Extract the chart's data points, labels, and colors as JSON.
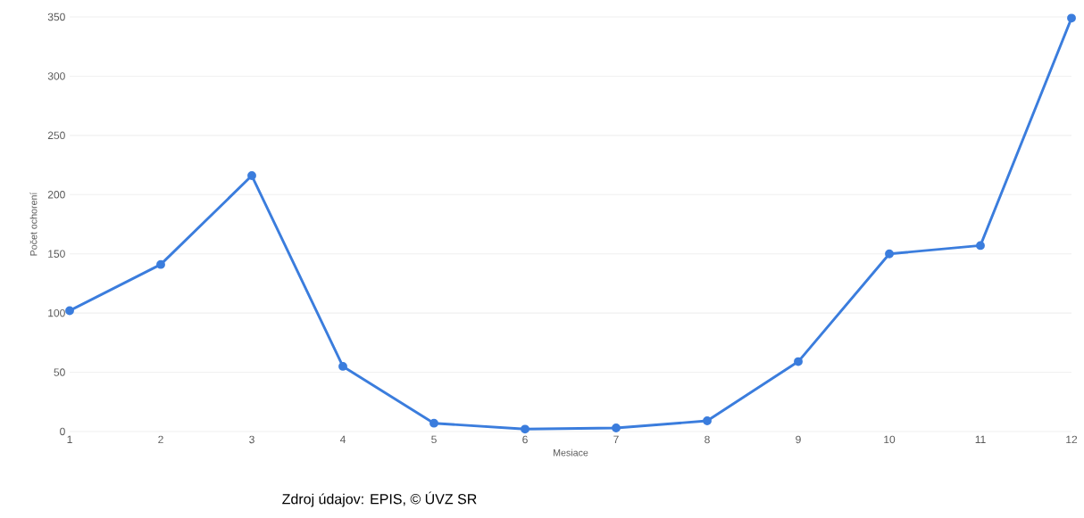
{
  "chart_data": {
    "type": "line",
    "x": [
      1,
      2,
      3,
      4,
      5,
      6,
      7,
      8,
      9,
      10,
      11,
      12
    ],
    "series": [
      {
        "color": "#3b7ddd",
        "values": [
          102,
          141,
          216,
          55,
          7,
          2,
          3,
          9,
          59,
          150,
          157,
          349
        ]
      }
    ],
    "xlim": [
      1,
      12
    ],
    "xticks": [
      1,
      2,
      3,
      4,
      5,
      6,
      7,
      8,
      9,
      10,
      11,
      12
    ],
    "ylim": [
      0,
      350
    ],
    "yticks": [
      0,
      50,
      100,
      150,
      200,
      250,
      300,
      350
    ],
    "xlabel": "Mesiace",
    "ylabel": "Počet ochorení",
    "annotations": [
      "Zdroj údajov: EPIS, © ÚVZ SR"
    ],
    "grid": "y",
    "marker": "circle",
    "line_style": "solid"
  }
}
